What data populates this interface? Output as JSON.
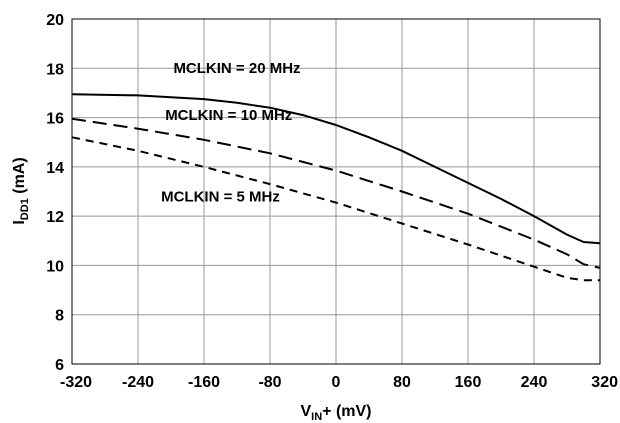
{
  "chart_data": {
    "type": "line",
    "xlabel": {
      "main": "V",
      "sub": "IN",
      "suffix": "+ (mV)"
    },
    "ylabel": {
      "main": "I",
      "sub": "DD1",
      "suffix": " (mA)"
    },
    "xlim": [
      -320,
      320
    ],
    "ylim": [
      6,
      20
    ],
    "xticks": [
      -320,
      -240,
      -160,
      -80,
      0,
      80,
      160,
      240,
      320
    ],
    "yticks": [
      6,
      8,
      10,
      12,
      14,
      16,
      18,
      20
    ],
    "grid": true,
    "series": [
      {
        "name": "MCLKIN = 20 MHz",
        "style": "solid",
        "x": [
          -320,
          -240,
          -160,
          -120,
          -80,
          -40,
          0,
          40,
          80,
          120,
          160,
          200,
          240,
          280,
          300,
          320
        ],
        "y": [
          16.95,
          16.9,
          16.75,
          16.6,
          16.4,
          16.1,
          15.7,
          15.2,
          14.65,
          14.0,
          13.35,
          12.7,
          12.0,
          11.25,
          10.95,
          10.9
        ]
      },
      {
        "name": "MCLKIN = 10 MHz",
        "style": "long-dash",
        "x": [
          -320,
          -240,
          -160,
          -80,
          0,
          80,
          160,
          240,
          280,
          300,
          320
        ],
        "y": [
          15.95,
          15.55,
          15.1,
          14.55,
          13.85,
          13.0,
          12.1,
          11.05,
          10.45,
          10.05,
          9.9
        ]
      },
      {
        "name": "MCLKIN = 5 MHz",
        "style": "short-dash",
        "x": [
          -320,
          -240,
          -160,
          -80,
          0,
          80,
          160,
          240,
          280,
          300,
          320
        ],
        "y": [
          15.2,
          14.65,
          14.0,
          13.3,
          12.55,
          11.7,
          10.85,
          9.95,
          9.5,
          9.4,
          9.4
        ]
      }
    ],
    "annotations": [
      {
        "text": "MCLKIN = 20 MHz",
        "series": 0
      },
      {
        "text": "MCLKIN = 10 MHz",
        "series": 1
      },
      {
        "text": "MCLKIN = 5 MHz",
        "series": 2
      }
    ]
  }
}
